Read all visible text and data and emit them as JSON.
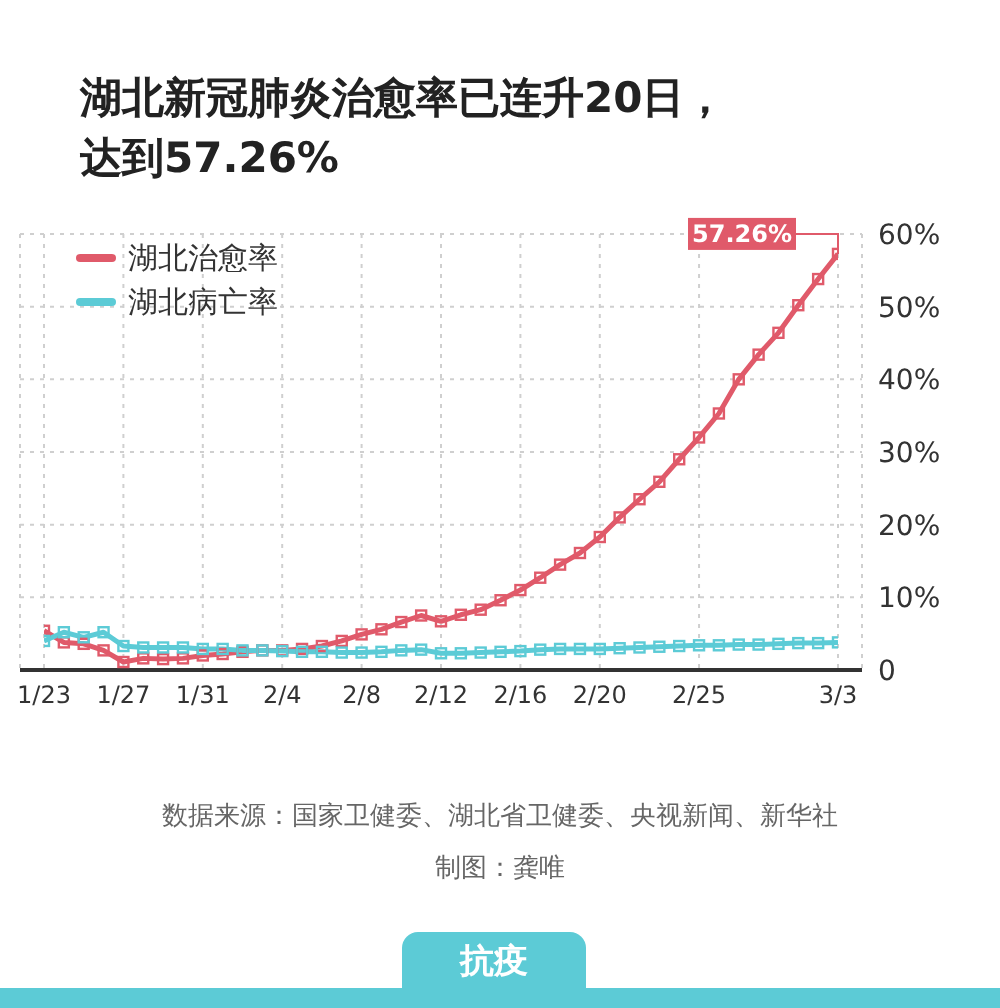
{
  "chart_data": {
    "type": "line",
    "title": "湖北新冠肺炎治愈率已连升20日，达到57.26%",
    "x": [
      "--01-23",
      "--01-24",
      "--01-25",
      "--01-26",
      "--01-27",
      "--01-28",
      "--01-29",
      "--01-30",
      "--01-31",
      "--02-01",
      "--02-02",
      "--02-03",
      "--02-04",
      "--02-05",
      "--02-06",
      "--02-07",
      "--02-08",
      "--02-09",
      "--02-10",
      "--02-11",
      "--02-12",
      "--02-13",
      "--02-14",
      "--02-15",
      "--02-16",
      "--02-17",
      "--02-18",
      "--02-19",
      "--02-20",
      "--02-21",
      "--02-22",
      "--02-23",
      "--02-24",
      "--02-25",
      "--02-26",
      "--02-27",
      "--02-28",
      "--02-29",
      "--03-01",
      "--03-02",
      "--03-03"
    ],
    "series": [
      {
        "name": "湖北治愈率",
        "color": "#e05a6a",
        "values": [
          5.4,
          3.8,
          3.6,
          2.7,
          1.1,
          1.6,
          1.5,
          1.6,
          2.0,
          2.2,
          2.5,
          2.7,
          2.7,
          2.9,
          3.3,
          4.0,
          4.9,
          5.6,
          6.6,
          7.5,
          6.7,
          7.6,
          8.3,
          9.6,
          11.0,
          12.7,
          14.5,
          16.1,
          18.3,
          21.0,
          23.5,
          25.9,
          29.0,
          32.0,
          35.3,
          40.0,
          43.4,
          46.4,
          50.2,
          53.8,
          57.26
        ]
      },
      {
        "name": "湖北病亡率",
        "color": "#5ccbd6",
        "values": [
          4.0,
          5.2,
          4.5,
          5.2,
          3.3,
          3.1,
          3.1,
          3.1,
          2.9,
          2.9,
          2.7,
          2.7,
          2.6,
          2.5,
          2.5,
          2.4,
          2.4,
          2.5,
          2.7,
          2.8,
          2.3,
          2.3,
          2.4,
          2.5,
          2.6,
          2.8,
          2.9,
          2.9,
          2.9,
          3.0,
          3.1,
          3.2,
          3.3,
          3.4,
          3.4,
          3.5,
          3.5,
          3.6,
          3.7,
          3.7,
          3.8
        ]
      }
    ],
    "xlim": [
      "--01-23",
      "--03-03"
    ],
    "xticks": [
      {
        "value": "--01-23",
        "label": "1/23"
      },
      {
        "value": "--01-27",
        "label": "1/27"
      },
      {
        "value": "--01-31",
        "label": "1/31"
      },
      {
        "value": "--02-04",
        "label": "2/4"
      },
      {
        "value": "--02-08",
        "label": "2/8"
      },
      {
        "value": "--02-12",
        "label": "2/12"
      },
      {
        "value": "--02-16",
        "label": "2/16"
      },
      {
        "value": "--02-20",
        "label": "2/20"
      },
      {
        "value": "--02-25",
        "label": "2/25"
      },
      {
        "value": "--03-03",
        "label": "3/3"
      }
    ],
    "ylim": [
      0,
      60
    ],
    "yticks": [
      0,
      {
        "value": 10,
        "label": "10%"
      },
      {
        "value": 20,
        "label": "20%"
      },
      {
        "value": 30,
        "label": "30%"
      },
      {
        "value": 40,
        "label": "40%"
      },
      {
        "value": 50,
        "label": "50%"
      },
      {
        "value": 60,
        "label": "60%"
      }
    ],
    "grid": true,
    "legend": "top left",
    "marker": "square",
    "line_style": "solid",
    "annotations": [
      {
        "text": "57.26%",
        "x": "--03-03",
        "y": 57.26
      },
      "数据来源：国家卫健委、湖北省卫健委、央视新闻、新华社",
      "制图：龚唯",
      "抗疫"
    ]
  }
}
